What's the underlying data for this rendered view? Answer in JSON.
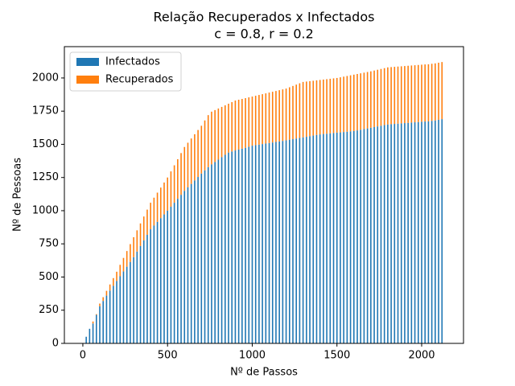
{
  "chart_data": {
    "type": "bar",
    "stacked": true,
    "title": "Relação Recuperados x Infectados",
    "subtitle": "c = 0.8, r = 0.2",
    "x_label": "Nº de Passos",
    "y_label": "Nº de Pessoas",
    "legend": "upper left",
    "grid": false,
    "xlim": [
      -109,
      2247
    ],
    "ylim": [
      0,
      2236
    ],
    "xticks": [
      0,
      500,
      1000,
      1500,
      2000
    ],
    "yticks": [
      0,
      250,
      500,
      750,
      1000,
      1250,
      1500,
      1750,
      2000
    ],
    "x": [
      0,
      20,
      40,
      60,
      80,
      100,
      120,
      140,
      160,
      180,
      200,
      220,
      240,
      260,
      280,
      300,
      320,
      340,
      360,
      380,
      400,
      420,
      440,
      460,
      480,
      500,
      520,
      540,
      560,
      580,
      600,
      620,
      640,
      660,
      680,
      700,
      720,
      740,
      760,
      780,
      800,
      820,
      840,
      860,
      880,
      900,
      920,
      940,
      960,
      980,
      1000,
      1020,
      1040,
      1060,
      1080,
      1100,
      1120,
      1140,
      1160,
      1180,
      1200,
      1220,
      1240,
      1260,
      1280,
      1300,
      1320,
      1340,
      1360,
      1380,
      1400,
      1420,
      1440,
      1460,
      1480,
      1500,
      1520,
      1540,
      1560,
      1580,
      1600,
      1620,
      1640,
      1660,
      1680,
      1700,
      1720,
      1740,
      1760,
      1780,
      1800,
      1820,
      1840,
      1860,
      1880,
      1900,
      1920,
      1940,
      1960,
      1980,
      2000,
      2020,
      2040,
      2060,
      2080,
      2100,
      2120
    ],
    "series": [
      {
        "name": "Infectados",
        "color": "#1f77b4",
        "values": [
          0,
          50,
          110,
          150,
          215,
          280,
          320,
          360,
          398,
          434,
          470,
          506,
          542,
          578,
          614,
          650,
          692,
          734,
          776,
          818,
          860,
          888,
          916,
          944,
          972,
          1000,
          1030,
          1060,
          1090,
          1120,
          1150,
          1176,
          1202,
          1228,
          1254,
          1280,
          1304,
          1328,
          1349,
          1367,
          1385,
          1403,
          1421,
          1438,
          1446,
          1454,
          1461,
          1467,
          1474,
          1482,
          1490,
          1494,
          1498,
          1502,
          1506,
          1510,
          1514,
          1518,
          1522,
          1526,
          1530,
          1535,
          1539,
          1544,
          1548,
          1553,
          1557,
          1562,
          1566,
          1571,
          1575,
          1578,
          1580,
          1583,
          1585,
          1588,
          1590,
          1593,
          1595,
          1598,
          1600,
          1605,
          1610,
          1615,
          1620,
          1625,
          1630,
          1635,
          1640,
          1645,
          1650,
          1652,
          1654,
          1656,
          1658,
          1660,
          1662,
          1664,
          1666,
          1668,
          1670,
          1672,
          1673,
          1677,
          1680,
          1685,
          1690
        ]
      },
      {
        "name": "Recuperados",
        "color": "#ff7f0e",
        "values": [
          0,
          0,
          0,
          15,
          5,
          20,
          28,
          36,
          46,
          58,
          70,
          86,
          102,
          118,
          134,
          150,
          160,
          170,
          180,
          190,
          200,
          210,
          220,
          230,
          240,
          250,
          266,
          282,
          298,
          314,
          330,
          336,
          342,
          348,
          354,
          360,
          376,
          392,
          397,
          391,
          385,
          379,
          373,
          368,
          372,
          376,
          375,
          375,
          374,
          372,
          370,
          372,
          374,
          376,
          378,
          380,
          382,
          384,
          386,
          388,
          390,
          395,
          401,
          406,
          412,
          417,
          416,
          414,
          413,
          411,
          410,
          410,
          411,
          411,
          412,
          412,
          415,
          417,
          420,
          422,
          425,
          425,
          425,
          425,
          425,
          425,
          426,
          427,
          428,
          429,
          430,
          430,
          430,
          430,
          430,
          430,
          430,
          430,
          430,
          430,
          430,
          430,
          430,
          430,
          430,
          430,
          430
        ]
      }
    ]
  }
}
